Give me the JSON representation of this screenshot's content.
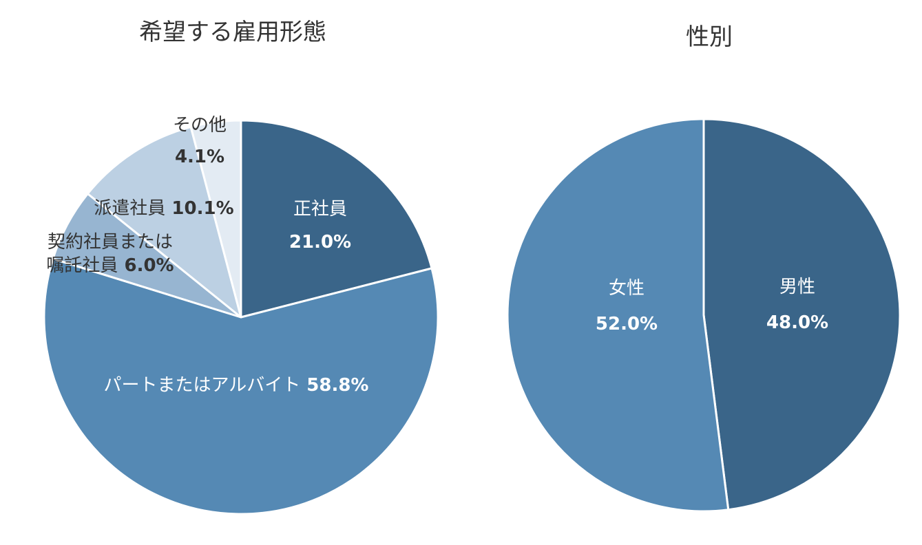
{
  "chart_data": [
    {
      "type": "pie",
      "title": "希望する雇用形態",
      "slices": [
        {
          "label": "正社員",
          "value": 21.0,
          "value_text": "21.0%",
          "color": "#3a6589",
          "label_color": "#ffffff"
        },
        {
          "label": "パートまたはアルバイト",
          "value": 58.8,
          "value_text": "58.8%",
          "color": "#5589b4",
          "label_color": "#ffffff"
        },
        {
          "label": "契約社員または嘱託社員",
          "label_lines": [
            "契約社員または",
            "嘱託社員"
          ],
          "value": 6.0,
          "value_text": "6.0%",
          "color": "#97b5d1",
          "label_color": "#333333"
        },
        {
          "label": "派遣社員",
          "value": 10.1,
          "value_text": "10.1%",
          "color": "#bcd0e3",
          "label_color": "#333333"
        },
        {
          "label": "その他",
          "value": 4.1,
          "value_text": "4.1%",
          "color": "#e3ebf3",
          "label_color": "#333333"
        }
      ]
    },
    {
      "type": "pie",
      "title": "性別",
      "slices": [
        {
          "label": "男性",
          "value": 48.0,
          "value_text": "48.0%",
          "color": "#3a6589",
          "label_color": "#ffffff"
        },
        {
          "label": "女性",
          "value": 52.0,
          "value_text": "52.0%",
          "color": "#5589b4",
          "label_color": "#ffffff"
        }
      ]
    }
  ]
}
